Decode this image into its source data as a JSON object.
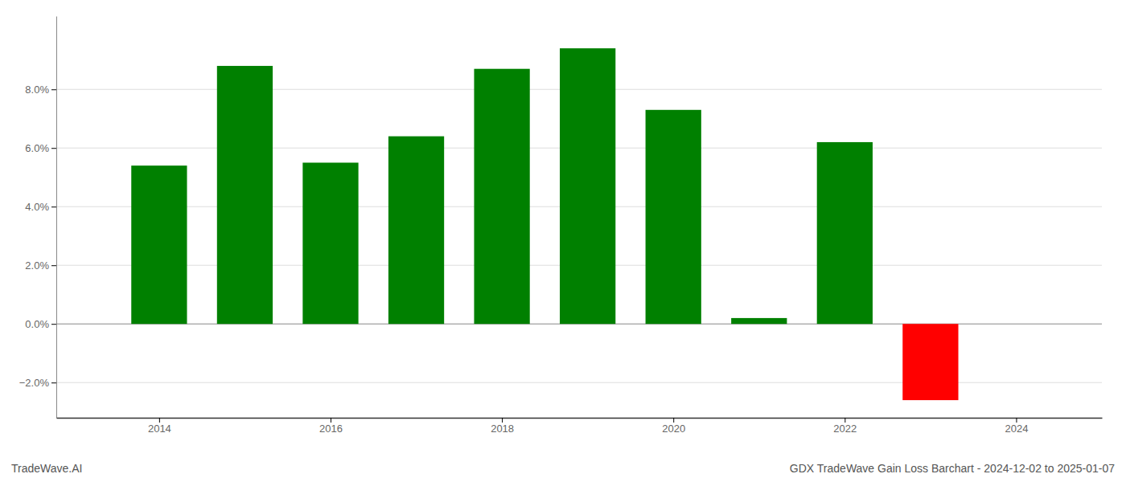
{
  "chart_data": {
    "type": "bar",
    "title": "GDX TradeWave Gain Loss Barchart - 2024-12-02 to 2025-01-07",
    "annotations": [
      "TradeWave.AI"
    ],
    "x": [
      2014,
      2015,
      2016,
      2017,
      2018,
      2019,
      2020,
      2021,
      2022,
      2023
    ],
    "values": [
      0.054,
      0.088,
      0.055,
      0.064,
      0.087,
      0.094,
      0.073,
      0.002,
      0.062,
      -0.026
    ],
    "colors": [
      "#008000",
      "#008000",
      "#008000",
      "#008000",
      "#008000",
      "#008000",
      "#008000",
      "#008000",
      "#008000",
      "#ff0000"
    ],
    "xlim": [
      2012.8,
      2025.0
    ],
    "xticks": [
      2014,
      2016,
      2018,
      2020,
      2022,
      2024
    ],
    "ylim": [
      -0.032,
      0.105
    ],
    "yticks": [
      {
        "value": -0.02,
        "label": "−2.0%"
      },
      {
        "value": 0.0,
        "label": "0.0%"
      },
      {
        "value": 0.02,
        "label": "2.0%"
      },
      {
        "value": 0.04,
        "label": "4.0%"
      },
      {
        "value": 0.06,
        "label": "6.0%"
      },
      {
        "value": 0.08,
        "label": "8.0%"
      }
    ],
    "grid": true
  }
}
